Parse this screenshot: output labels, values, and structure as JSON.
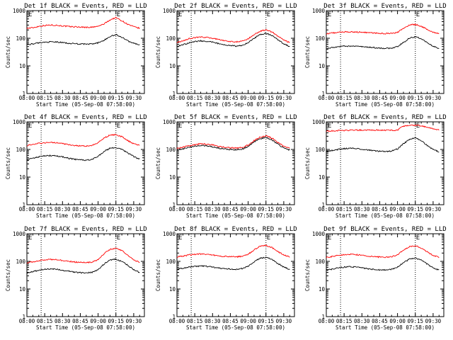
{
  "chart_data": [
    {
      "type": "line",
      "title": "Det 1f BLACK = Events, RED = LLD",
      "xlabel": "Start Time (05-Sep-08 07:58:00)",
      "ylabel": "Counts/sec",
      "yscale": "log",
      "ylim": [
        1,
        1000
      ],
      "x_ticks": [
        "08:00",
        "08:15",
        "08:30",
        "08:45",
        "09:00",
        "09:15",
        "09:30"
      ],
      "y_ticks": [
        "1",
        "10",
        "100",
        "1000"
      ],
      "markers": [
        "E",
        "E"
      ],
      "vlines": [
        "08:12",
        "09:15"
      ],
      "x": [
        "08:00",
        "08:05",
        "08:10",
        "08:15",
        "08:20",
        "08:25",
        "08:30",
        "08:35",
        "08:40",
        "08:45",
        "08:50",
        "08:55",
        "09:00",
        "09:05",
        "09:10",
        "09:15",
        "09:20",
        "09:25",
        "09:30",
        "09:35"
      ],
      "series": [
        {
          "name": "LLD",
          "color": "#ff0000",
          "values": [
            230,
            240,
            270,
            290,
            300,
            295,
            280,
            265,
            260,
            255,
            250,
            250,
            270,
            330,
            460,
            560,
            430,
            320,
            260,
            230
          ]
        },
        {
          "name": "Events",
          "color": "#000000",
          "values": [
            60,
            62,
            68,
            72,
            74,
            73,
            70,
            66,
            64,
            62,
            61,
            62,
            68,
            85,
            115,
            135,
            110,
            80,
            66,
            58
          ]
        }
      ]
    },
    {
      "type": "line",
      "title": "Det 2f BLACK = Events, RED = LLD",
      "xlabel": "Start Time (05-Sep-08 07:58:00)",
      "ylabel": "Counts/sec",
      "yscale": "log",
      "ylim": [
        1,
        1000
      ],
      "x_ticks": [
        "08:00",
        "08:15",
        "08:30",
        "08:45",
        "09:00",
        "09:15",
        "09:30"
      ],
      "y_ticks": [
        "1",
        "10",
        "100",
        "1000"
      ],
      "markers": [
        "E",
        "E"
      ],
      "vlines": [
        "08:12",
        "09:15"
      ],
      "x": [
        "08:00",
        "08:05",
        "08:10",
        "08:15",
        "08:20",
        "08:25",
        "08:30",
        "08:35",
        "08:40",
        "08:45",
        "08:50",
        "08:55",
        "09:00",
        "09:05",
        "09:10",
        "09:15",
        "09:20",
        "09:25",
        "09:30",
        "09:35"
      ],
      "series": [
        {
          "name": "LLD",
          "color": "#ff0000",
          "values": [
            70,
            80,
            95,
            105,
            110,
            108,
            100,
            90,
            82,
            76,
            74,
            78,
            95,
            135,
            180,
            200,
            170,
            120,
            85,
            70
          ]
        },
        {
          "name": "Events",
          "color": "#000000",
          "values": [
            50,
            58,
            68,
            76,
            80,
            78,
            72,
            64,
            58,
            54,
            52,
            55,
            68,
            100,
            135,
            150,
            125,
            88,
            62,
            50
          ]
        }
      ]
    },
    {
      "type": "line",
      "title": "Det 3f BLACK = Events, RED = LLD",
      "xlabel": "Start Time (05-Sep-08 07:58:00)",
      "ylabel": "Counts/sec",
      "yscale": "log",
      "ylim": [
        1,
        1000
      ],
      "x_ticks": [
        "08:00",
        "08:15",
        "08:30",
        "08:45",
        "09:00",
        "09:15",
        "09:30"
      ],
      "y_ticks": [
        "1",
        "10",
        "100",
        "1000"
      ],
      "markers": [
        "E",
        "E"
      ],
      "vlines": [
        "08:12",
        "09:15"
      ],
      "x": [
        "08:00",
        "08:05",
        "08:10",
        "08:15",
        "08:20",
        "08:25",
        "08:30",
        "08:35",
        "08:40",
        "08:45",
        "08:50",
        "08:55",
        "09:00",
        "09:05",
        "09:10",
        "09:15",
        "09:20",
        "09:25",
        "09:30",
        "09:35"
      ],
      "series": [
        {
          "name": "LLD",
          "color": "#ff0000",
          "values": [
            145,
            155,
            165,
            170,
            170,
            168,
            165,
            160,
            155,
            150,
            148,
            150,
            165,
            220,
            300,
            320,
            270,
            210,
            165,
            145
          ]
        },
        {
          "name": "Events",
          "color": "#000000",
          "values": [
            42,
            46,
            50,
            52,
            52,
            51,
            50,
            48,
            46,
            44,
            43,
            44,
            50,
            70,
            100,
            115,
            95,
            70,
            52,
            42
          ]
        }
      ]
    },
    {
      "type": "line",
      "title": "Det 4f BLACK = Events, RED = LLD",
      "xlabel": "Start Time (05-Sep-08 07:58:00)",
      "ylabel": "Counts/sec",
      "yscale": "log",
      "ylim": [
        1,
        1000
      ],
      "x_ticks": [
        "08:00",
        "08:15",
        "08:30",
        "08:45",
        "09:00",
        "09:15",
        "09:30"
      ],
      "y_ticks": [
        "1",
        "10",
        "100",
        "1000"
      ],
      "markers": [
        "E",
        "E"
      ],
      "vlines": [
        "08:12",
        "09:15"
      ],
      "x": [
        "08:00",
        "08:05",
        "08:10",
        "08:15",
        "08:20",
        "08:25",
        "08:30",
        "08:35",
        "08:40",
        "08:45",
        "08:50",
        "08:55",
        "09:00",
        "09:05",
        "09:10",
        "09:15",
        "09:20",
        "09:25",
        "09:30",
        "09:35"
      ],
      "series": [
        {
          "name": "LLD",
          "color": "#ff0000",
          "values": [
            140,
            150,
            165,
            175,
            180,
            175,
            165,
            150,
            140,
            135,
            132,
            140,
            175,
            260,
            330,
            340,
            290,
            210,
            160,
            140
          ]
        },
        {
          "name": "Events",
          "color": "#000000",
          "values": [
            44,
            48,
            54,
            58,
            60,
            58,
            54,
            48,
            44,
            42,
            41,
            44,
            56,
            85,
            110,
            120,
            100,
            75,
            55,
            45
          ]
        }
      ]
    },
    {
      "type": "line",
      "title": "Det 5f BLACK = Events, RED = LLD",
      "xlabel": "Start Time (05-Sep-08 07:58:00)",
      "ylabel": "Counts/sec",
      "yscale": "log",
      "ylim": [
        1,
        1000
      ],
      "x_ticks": [
        "08:00",
        "08:15",
        "08:30",
        "08:45",
        "09:00",
        "09:15",
        "09:30"
      ],
      "y_ticks": [
        "1",
        "10",
        "100",
        "1000"
      ],
      "markers": [
        "E",
        "E"
      ],
      "vlines": [
        "08:12",
        "09:15"
      ],
      "x": [
        "08:00",
        "08:05",
        "08:10",
        "08:15",
        "08:20",
        "08:25",
        "08:30",
        "08:35",
        "08:40",
        "08:45",
        "08:50",
        "08:55",
        "09:00",
        "09:05",
        "09:10",
        "09:15",
        "09:20",
        "09:25",
        "09:30",
        "09:35"
      ],
      "series": [
        {
          "name": "LLD",
          "color": "#ff0000",
          "values": [
            110,
            120,
            135,
            150,
            160,
            155,
            145,
            130,
            120,
            115,
            112,
            118,
            145,
            210,
            280,
            310,
            260,
            180,
            130,
            110
          ]
        },
        {
          "name": "Events",
          "color": "#000000",
          "values": [
            95,
            105,
            118,
            130,
            138,
            134,
            125,
            112,
            104,
            100,
            98,
            104,
            128,
            185,
            245,
            270,
            225,
            155,
            112,
            95
          ]
        }
      ]
    },
    {
      "type": "line",
      "title": "Det 6f BLACK = Events, RED = LLD",
      "xlabel": "Start Time (05-Sep-08 07:58:00)",
      "ylabel": "Counts/sec",
      "yscale": "log",
      "ylim": [
        1,
        1000
      ],
      "x_ticks": [
        "08:00",
        "08:15",
        "08:30",
        "08:45",
        "09:00",
        "09:15",
        "09:30"
      ],
      "y_ticks": [
        "1",
        "10",
        "100",
        "1000"
      ],
      "markers": [
        "E",
        "E"
      ],
      "vlines": [
        "08:12",
        "09:15"
      ],
      "x": [
        "08:00",
        "08:05",
        "08:10",
        "08:15",
        "08:20",
        "08:25",
        "08:30",
        "08:35",
        "08:40",
        "08:45",
        "08:50",
        "08:55",
        "09:00",
        "09:05",
        "09:10",
        "09:15",
        "09:20",
        "09:25",
        "09:30",
        "09:35"
      ],
      "series": [
        {
          "name": "LLD",
          "color": "#ff0000",
          "values": [
            460,
            470,
            480,
            490,
            500,
            500,
            500,
            500,
            500,
            500,
            500,
            500,
            500,
            700,
            740,
            760,
            720,
            640,
            560,
            500
          ]
        },
        {
          "name": "Events",
          "color": "#000000",
          "values": [
            85,
            92,
            100,
            108,
            110,
            108,
            102,
            95,
            90,
            86,
            84,
            88,
            105,
            160,
            230,
            260,
            210,
            140,
            100,
            82
          ]
        }
      ]
    },
    {
      "type": "line",
      "title": "Det 7f BLACK = Events, RED = LLD",
      "xlabel": "Start Time (05-Sep-08 07:58:00)",
      "ylabel": "Counts/sec",
      "yscale": "log",
      "ylim": [
        1,
        1000
      ],
      "x_ticks": [
        "08:00",
        "08:15",
        "08:30",
        "08:45",
        "09:00",
        "09:15",
        "09:30"
      ],
      "y_ticks": [
        "1",
        "10",
        "100",
        "1000"
      ],
      "markers": [
        "E",
        "E"
      ],
      "vlines": [
        "08:12",
        "09:15"
      ],
      "x": [
        "08:00",
        "08:05",
        "08:10",
        "08:15",
        "08:20",
        "08:25",
        "08:30",
        "08:35",
        "08:40",
        "08:45",
        "08:50",
        "08:55",
        "09:00",
        "09:05",
        "09:10",
        "09:15",
        "09:20",
        "09:25",
        "09:30",
        "09:35"
      ],
      "series": [
        {
          "name": "LLD",
          "color": "#ff0000",
          "values": [
            90,
            95,
            105,
            115,
            118,
            115,
            108,
            100,
            95,
            92,
            90,
            95,
            115,
            190,
            270,
            300,
            250,
            170,
            115,
            92
          ]
        },
        {
          "name": "Events",
          "color": "#000000",
          "values": [
            38,
            42,
            48,
            52,
            54,
            52,
            48,
            44,
            41,
            39,
            38,
            40,
            50,
            80,
            110,
            120,
            100,
            72,
            50,
            40
          ]
        }
      ]
    },
    {
      "type": "line",
      "title": "Det 8f BLACK = Events, RED = LLD",
      "xlabel": "Start Time (05-Sep-08 07:58:00)",
      "ylabel": "Counts/sec",
      "yscale": "log",
      "ylim": [
        1,
        1000
      ],
      "x_ticks": [
        "08:00",
        "08:15",
        "08:30",
        "08:45",
        "09:00",
        "09:15",
        "09:30"
      ],
      "y_ticks": [
        "1",
        "10",
        "100",
        "1000"
      ],
      "markers": [
        "E",
        "E"
      ],
      "vlines": [
        "08:12",
        "09:15"
      ],
      "x": [
        "08:00",
        "08:05",
        "08:10",
        "08:15",
        "08:20",
        "08:25",
        "08:30",
        "08:35",
        "08:40",
        "08:45",
        "08:50",
        "08:55",
        "09:00",
        "09:05",
        "09:10",
        "09:15",
        "09:20",
        "09:25",
        "09:30",
        "09:35"
      ],
      "series": [
        {
          "name": "LLD",
          "color": "#ff0000",
          "values": [
            145,
            155,
            170,
            180,
            185,
            180,
            170,
            160,
            152,
            148,
            146,
            152,
            180,
            260,
            350,
            380,
            320,
            230,
            170,
            145
          ]
        },
        {
          "name": "Events",
          "color": "#000000",
          "values": [
            52,
            56,
            62,
            66,
            68,
            66,
            62,
            58,
            55,
            53,
            52,
            55,
            66,
            95,
            130,
            140,
            118,
            85,
            62,
            52
          ]
        }
      ]
    },
    {
      "type": "line",
      "title": "Det 9f BLACK = Events, RED = LLD",
      "xlabel": "Start Time (05-Sep-08 07:58:00)",
      "ylabel": "Counts/sec",
      "yscale": "log",
      "ylim": [
        1,
        1000
      ],
      "x_ticks": [
        "08:00",
        "08:15",
        "08:30",
        "08:45",
        "09:00",
        "09:15",
        "09:30"
      ],
      "y_ticks": [
        "1",
        "10",
        "100",
        "1000"
      ],
      "markers": [
        "E",
        "E"
      ],
      "vlines": [
        "08:12",
        "09:15"
      ],
      "x": [
        "08:00",
        "08:05",
        "08:10",
        "08:15",
        "08:20",
        "08:25",
        "08:30",
        "08:35",
        "08:40",
        "08:45",
        "08:50",
        "08:55",
        "09:00",
        "09:05",
        "09:10",
        "09:15",
        "09:20",
        "09:25",
        "09:30",
        "09:35"
      ],
      "series": [
        {
          "name": "LLD",
          "color": "#ff0000",
          "values": [
            140,
            150,
            165,
            175,
            180,
            175,
            165,
            155,
            148,
            144,
            142,
            148,
            175,
            250,
            340,
            370,
            310,
            220,
            165,
            140
          ]
        },
        {
          "name": "Events",
          "color": "#000000",
          "values": [
            48,
            52,
            58,
            62,
            64,
            62,
            58,
            54,
            51,
            49,
            48,
            51,
            62,
            90,
            120,
            130,
            110,
            80,
            58,
            48
          ]
        }
      ]
    }
  ]
}
